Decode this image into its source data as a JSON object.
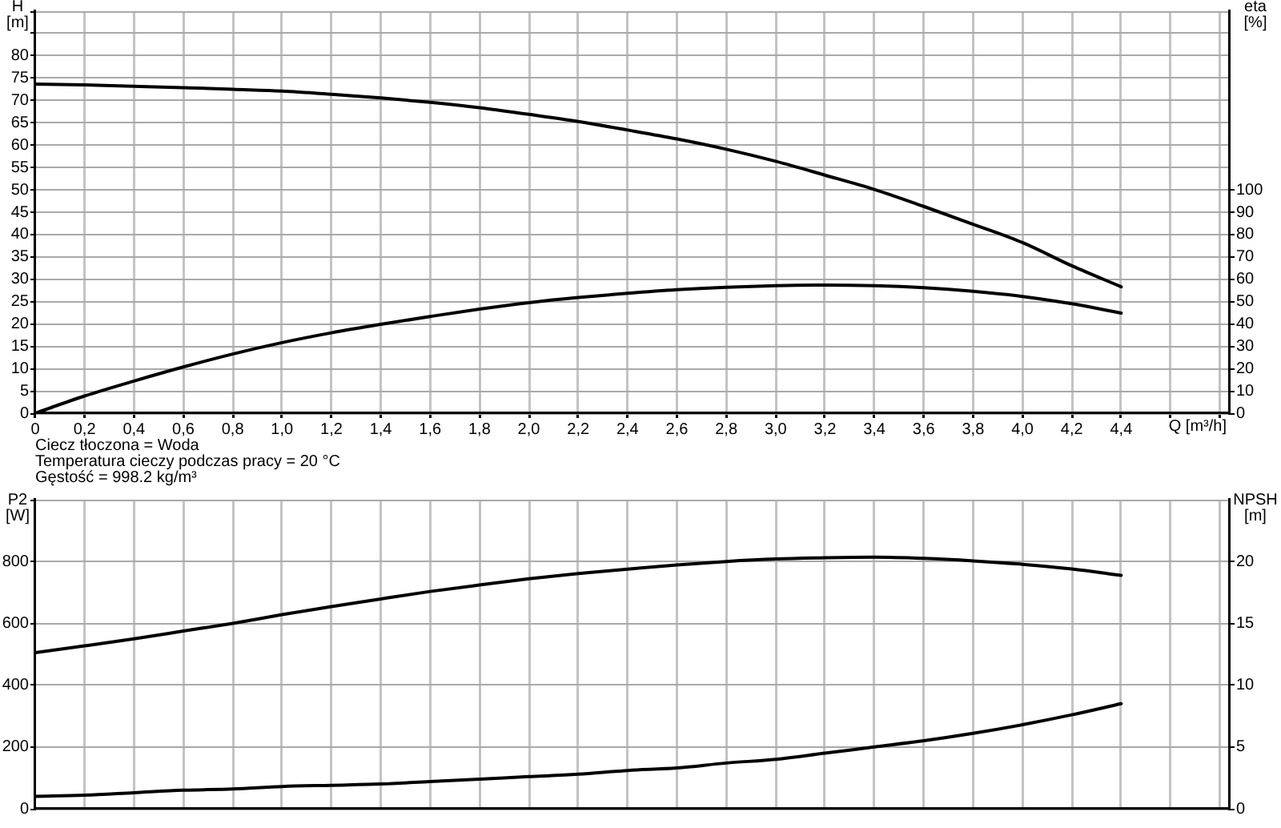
{
  "chart_data": [
    {
      "type": "line",
      "xlabel": "Q [m³/h]",
      "ylabel": "H [m]",
      "y2label": "eta [%]",
      "annotations": [
        "Ciecz tłoczona = Woda",
        "Temperatura cieczy podczas pracy = 20 °C",
        "Gęstość = 998.2 kg/m³"
      ],
      "x": [
        0,
        0.2,
        0.4,
        0.6,
        0.8,
        1.0,
        1.2,
        1.4,
        1.6,
        1.8,
        2.0,
        2.2,
        2.4,
        2.6,
        2.8,
        3.0,
        3.2,
        3.4,
        3.6,
        3.8,
        4.0,
        4.2,
        4.4
      ],
      "series": [
        {
          "color": "#000000",
          "values": [
            73.7,
            73.5,
            73.2,
            72.9,
            72.5,
            72.1,
            71.4,
            70.6,
            69.6,
            68.4,
            66.9,
            65.3,
            63.4,
            61.4,
            59.1,
            56.4,
            53.3,
            50.1,
            46.3,
            42.3,
            38.2,
            33.0,
            28.3
          ]
        },
        {
          "color": "#000000",
          "axis": "y2",
          "values": [
            0,
            7.7,
            14.4,
            20.7,
            26.5,
            31.6,
            36.0,
            39.8,
            43.3,
            46.6,
            49.5,
            51.8,
            53.7,
            55.3,
            56.4,
            57.1,
            57.4,
            57.1,
            56.2,
            54.6,
            52.3,
            49.0,
            44.8
          ]
        }
      ],
      "xlim": [
        0,
        4.84
      ],
      "xticks": [
        0,
        {
          "value": 0.2,
          "label": "0,2"
        },
        {
          "value": 0.4,
          "label": "0,4"
        },
        {
          "value": 0.6,
          "label": "0,6"
        },
        {
          "value": 0.8,
          "label": "0,8"
        },
        {
          "value": 1.0,
          "label": "1,0"
        },
        {
          "value": 1.2,
          "label": "1,2"
        },
        {
          "value": 1.4,
          "label": "1,4"
        },
        {
          "value": 1.6,
          "label": "1,6"
        },
        {
          "value": 1.8,
          "label": "1,8"
        },
        {
          "value": 2.0,
          "label": "2,0"
        },
        {
          "value": 2.2,
          "label": "2,2"
        },
        {
          "value": 2.4,
          "label": "2,4"
        },
        {
          "value": 2.6,
          "label": "2,6"
        },
        {
          "value": 2.8,
          "label": "2,8"
        },
        {
          "value": 3.0,
          "label": "3,0"
        },
        {
          "value": 3.2,
          "label": "3,2"
        },
        {
          "value": 3.4,
          "label": "3,4"
        },
        {
          "value": 3.6,
          "label": "3,6"
        },
        {
          "value": 3.8,
          "label": "3,8"
        },
        {
          "value": 4.0,
          "label": "4,0"
        },
        {
          "value": 4.2,
          "label": "4,2"
        },
        {
          "value": 4.4,
          "label": "4,4"
        },
        {
          "value": 4.6,
          "label": null
        },
        {
          "value": 4.8,
          "label": null
        }
      ],
      "ylim": [
        0,
        90
      ],
      "yticks": [
        0,
        5,
        10,
        15,
        20,
        25,
        30,
        35,
        40,
        45,
        50,
        55,
        60,
        65,
        70,
        75,
        80,
        {
          "value": 85,
          "label": null
        },
        {
          "value": 90,
          "label": null
        }
      ],
      "y2lim": [
        0,
        180
      ],
      "y2ticks": [
        0,
        10,
        20,
        30,
        40,
        50,
        60,
        70,
        80,
        90,
        100
      ],
      "grid": true,
      "marker": "none"
    },
    {
      "type": "line",
      "ylabel": "P2 [W]",
      "y2label": "NPSH [m]",
      "x": [
        0,
        0.2,
        0.4,
        0.6,
        0.8,
        1.0,
        1.2,
        1.4,
        1.6,
        1.8,
        2.0,
        2.2,
        2.4,
        2.6,
        2.8,
        3.0,
        3.2,
        3.4,
        3.6,
        3.8,
        4.0,
        4.2,
        4.4
      ],
      "series": [
        {
          "color": "#000000",
          "values": [
            505,
            527,
            550,
            575,
            600,
            628,
            654,
            679,
            703,
            724,
            744,
            761,
            775,
            789,
            800,
            808,
            812,
            814,
            810,
            802,
            791,
            776,
            755
          ]
        },
        {
          "color": "#000000",
          "axis": "y2",
          "values": [
            1.0,
            1.1,
            1.3,
            1.5,
            1.6,
            1.8,
            1.9,
            2.0,
            2.2,
            2.4,
            2.6,
            2.8,
            3.1,
            3.3,
            3.7,
            4.0,
            4.5,
            5.0,
            5.5,
            6.1,
            6.8,
            7.6,
            8.5
          ]
        }
      ],
      "xlim": [
        0,
        4.84
      ],
      "xticks": [
        0,
        0.2,
        0.4,
        0.6,
        0.8,
        1.0,
        1.2,
        1.4,
        1.6,
        1.8,
        2.0,
        2.2,
        2.4,
        2.6,
        2.8,
        3.0,
        3.2,
        3.4,
        3.6,
        3.8,
        4.0,
        4.2,
        4.4,
        4.6,
        4.8
      ],
      "ylim": [
        0,
        1000
      ],
      "yticks": [
        0,
        200,
        400,
        600,
        800,
        {
          "value": 1000,
          "label": null
        }
      ],
      "y2lim": [
        0,
        25
      ],
      "y2ticks": [
        0,
        5,
        10,
        15,
        20
      ],
      "grid": true,
      "marker": "none",
      "tick_labels": "y"
    }
  ]
}
